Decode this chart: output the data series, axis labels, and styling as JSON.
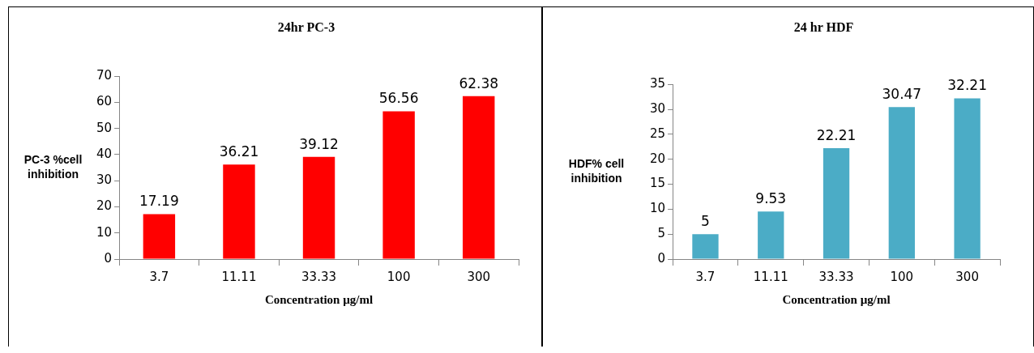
{
  "chart_data": [
    {
      "type": "bar",
      "title": "24hr PC-3",
      "xlabel": "Concentration µg/ml",
      "ylabel": "PC-3 %cell inhibition",
      "categories": [
        "3.7",
        "11.11",
        "33.33",
        "100",
        "300"
      ],
      "values": [
        17.19,
        36.21,
        39.12,
        56.56,
        62.38
      ],
      "color": "#ff0000",
      "ylim": [
        0,
        70
      ],
      "yticks": [
        0,
        10,
        20,
        30,
        40,
        50,
        60,
        70
      ],
      "grid": false,
      "legend": false,
      "data_labels": true
    },
    {
      "type": "bar",
      "title": "24 hr HDF",
      "xlabel": "Concentration µg/ml",
      "ylabel": "HDF% cell inhibition",
      "categories": [
        "3.7",
        "11.11",
        "33.33",
        "100",
        "300"
      ],
      "values": [
        5,
        9.53,
        22.21,
        30.47,
        32.21
      ],
      "color": "#4bacc6",
      "ylim": [
        0,
        35
      ],
      "yticks": [
        0,
        5,
        10,
        15,
        20,
        25,
        30,
        35
      ],
      "grid": false,
      "legend": false,
      "data_labels": true
    }
  ]
}
